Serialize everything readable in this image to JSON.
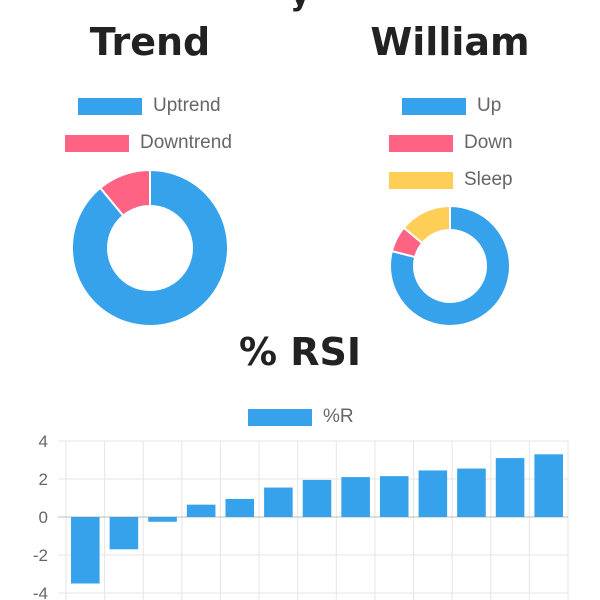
{
  "page": {
    "top_title_partial": "y"
  },
  "chart_data": [
    {
      "type": "pie",
      "variant": "doughnut",
      "title": "Trend",
      "labels": [
        "Uptrend",
        "Downtrend"
      ],
      "values": [
        89,
        11
      ],
      "colors": [
        "#36A2EB",
        "#FF6384"
      ],
      "legend_position": "top"
    },
    {
      "type": "pie",
      "variant": "doughnut",
      "title": "William",
      "labels": [
        "Up",
        "Down",
        "Sleep"
      ],
      "values": [
        79,
        7,
        14
      ],
      "colors": [
        "#36A2EB",
        "#FF6384",
        "#FFCE56"
      ],
      "legend_position": "top"
    },
    {
      "type": "bar",
      "title": "% RSI",
      "series": [
        {
          "name": "%R",
          "color": "#36A2EB",
          "values": [
            -3.5,
            -1.7,
            -0.25,
            0.65,
            0.95,
            1.55,
            1.95,
            2.1,
            2.15,
            2.45,
            2.55,
            3.1,
            3.3
          ]
        }
      ],
      "ylim": [
        -4,
        4
      ],
      "yticks": [
        "4",
        "2",
        "0",
        "-2",
        "-4"
      ],
      "grid": true,
      "legend_position": "top"
    }
  ]
}
